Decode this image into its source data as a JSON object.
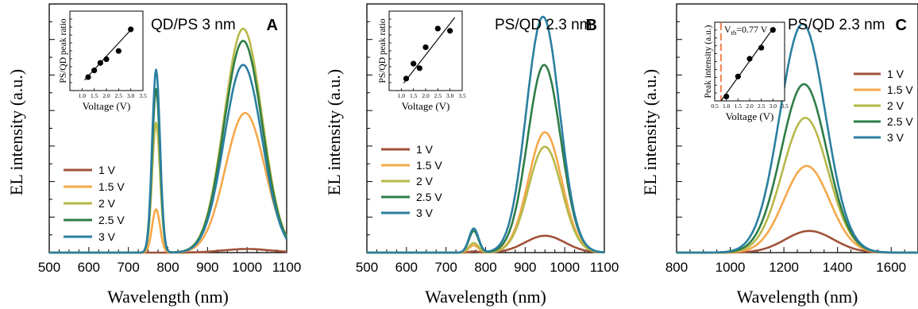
{
  "chart_data": [
    {
      "type": "line",
      "label": "A",
      "title": "QD/PS 3 nm",
      "xlabel": "Wavelength (nm)",
      "ylabel": "EL intensity (a.u.)",
      "xlim": [
        500,
        1100
      ],
      "ylim": [
        0,
        1.0
      ],
      "xticks": [
        500,
        600,
        700,
        800,
        900,
        1000,
        1100
      ],
      "legend_placement": "center-left",
      "colors": {
        "1 V": "#a0523a",
        "1.5 V": "#f5a84a",
        "2 V": "#b8b84a",
        "2.5 V": "#2e7d46",
        "3 V": "#2a7fa0"
      },
      "series": [
        {
          "name": "1 V",
          "peaks": [
            {
              "center": 770,
              "height": 0.0,
              "width": 10
            },
            {
              "center": 1000,
              "height": 0.015,
              "width": 60
            }
          ]
        },
        {
          "name": "1.5 V",
          "peaks": [
            {
              "center": 770,
              "height": 0.18,
              "width": 10
            },
            {
              "center": 995,
              "height": 0.58,
              "width": 50
            }
          ]
        },
        {
          "name": "2 V",
          "peaks": [
            {
              "center": 770,
              "height": 0.54,
              "width": 10
            },
            {
              "center": 990,
              "height": 0.93,
              "width": 48
            }
          ]
        },
        {
          "name": "2.5 V",
          "peaks": [
            {
              "center": 770,
              "height": 0.68,
              "width": 10
            },
            {
              "center": 990,
              "height": 0.88,
              "width": 48
            }
          ]
        },
        {
          "name": "3 V",
          "peaks": [
            {
              "center": 770,
              "height": 0.76,
              "width": 10
            },
            {
              "center": 990,
              "height": 0.78,
              "width": 48
            }
          ]
        }
      ],
      "inset": {
        "xlabel": "Voltage (V)",
        "ylabel": "PS/QD peak ratio",
        "xlim": [
          0.5,
          3.5
        ],
        "xticks": [
          "1.0",
          "1.5",
          "2.0",
          "2.5",
          "3.0",
          "3.5"
        ],
        "points": [
          [
            1.25,
            0.18
          ],
          [
            1.5,
            0.27
          ],
          [
            1.75,
            0.37
          ],
          [
            2.0,
            0.42
          ],
          [
            2.5,
            0.53
          ],
          [
            3.0,
            0.82
          ]
        ],
        "fit": [
          [
            1.1,
            0.14
          ],
          [
            3.05,
            0.83
          ]
        ]
      }
    },
    {
      "type": "line",
      "label": "B",
      "title": "PS/QD 2.3 nm",
      "xlabel": "Wavelength (nm)",
      "ylabel": "EL intensity (a.u.)",
      "xlim": [
        500,
        1100
      ],
      "ylim": [
        0,
        1.0
      ],
      "xticks": [
        500,
        600,
        700,
        800,
        900,
        1000,
        1100
      ],
      "legend_placement": "bottom-left",
      "colors": {
        "1 V": "#a0523a",
        "1.5 V": "#f5a84a",
        "2 V": "#b8b84a",
        "2.5 V": "#2e7d46",
        "3 V": "#2a7fa0"
      },
      "series": [
        {
          "name": "1 V",
          "peaks": [
            {
              "center": 770,
              "height": 0.005,
              "width": 12
            },
            {
              "center": 950,
              "height": 0.07,
              "width": 50
            }
          ]
        },
        {
          "name": "1.5 V",
          "peaks": [
            {
              "center": 770,
              "height": 0.03,
              "width": 12
            },
            {
              "center": 950,
              "height": 0.5,
              "width": 42
            }
          ]
        },
        {
          "name": "2 V",
          "peaks": [
            {
              "center": 770,
              "height": 0.04,
              "width": 12
            },
            {
              "center": 950,
              "height": 0.44,
              "width": 42
            }
          ]
        },
        {
          "name": "2.5 V",
          "peaks": [
            {
              "center": 770,
              "height": 0.09,
              "width": 12
            },
            {
              "center": 948,
              "height": 0.78,
              "width": 42
            }
          ]
        },
        {
          "name": "3 V",
          "peaks": [
            {
              "center": 770,
              "height": 0.1,
              "width": 12
            },
            {
              "center": 945,
              "height": 0.98,
              "width": 42
            }
          ]
        }
      ],
      "inset": {
        "xlabel": "Voltage (V)",
        "ylabel": "PS/QD peak ratio",
        "xlim": [
          0.5,
          3.5
        ],
        "xticks": [
          "1.0",
          "1.5",
          "2.0",
          "2.5",
          "3.0",
          "3.5"
        ],
        "points": [
          [
            1.2,
            0.16
          ],
          [
            1.5,
            0.36
          ],
          [
            1.75,
            0.3
          ],
          [
            2.0,
            0.58
          ],
          [
            2.5,
            0.83
          ],
          [
            3.0,
            0.8
          ]
        ],
        "fit": [
          [
            1.1,
            0.1
          ],
          [
            3.2,
            0.98
          ]
        ]
      }
    },
    {
      "type": "line",
      "label": "C",
      "title": "PS/QD 2.3 nm",
      "xlabel": "Wavelength (nm)",
      "ylabel": "EL intensity (a.u.)",
      "xlim": [
        800,
        1700
      ],
      "ylim": [
        0,
        1.0
      ],
      "xticks": [
        800,
        1000,
        1200,
        1400,
        1600
      ],
      "legend_placement": "right",
      "colors": {
        "1 V": "#a0523a",
        "1.5 V": "#f5a84a",
        "2 V": "#b8b84a",
        "2.5 V": "#2e7d46",
        "3 V": "#2a7fa0"
      },
      "series": [
        {
          "name": "1 V",
          "peaks": [
            {
              "center": 1295,
              "height": 0.09,
              "width": 90
            }
          ]
        },
        {
          "name": "1.5 V",
          "peaks": [
            {
              "center": 1285,
              "height": 0.36,
              "width": 85
            }
          ]
        },
        {
          "name": "2 V",
          "peaks": [
            {
              "center": 1280,
              "height": 0.56,
              "width": 85
            }
          ]
        },
        {
          "name": "2.5 V",
          "peaks": [
            {
              "center": 1275,
              "height": 0.7,
              "width": 85
            }
          ]
        },
        {
          "name": "3 V",
          "peaks": [
            {
              "center": 1270,
              "height": 0.95,
              "width": 85
            }
          ]
        }
      ],
      "inset": {
        "xlabel": "Voltage (V)",
        "ylabel": "Peak intensity (a.u.)",
        "annotation": "V",
        "annotation_sub": "th",
        "annotation_value": "=0.77 V",
        "threshold_x": 0.77,
        "xlim": [
          0.5,
          3.5
        ],
        "xticks": [
          "0.5",
          "1.0",
          "1.5",
          "2.0",
          "2.5",
          "3.0",
          "3.5"
        ],
        "points": [
          [
            1.0,
            0.06
          ],
          [
            1.5,
            0.33
          ],
          [
            2.0,
            0.57
          ],
          [
            2.5,
            0.72
          ],
          [
            3.0,
            0.96
          ]
        ],
        "fit": [
          [
            0.77,
            0.0
          ],
          [
            3.05,
            1.0
          ]
        ]
      }
    }
  ],
  "legend_entries": [
    "1 V",
    "1.5 V",
    "2 V",
    "2.5 V",
    "3 V"
  ]
}
